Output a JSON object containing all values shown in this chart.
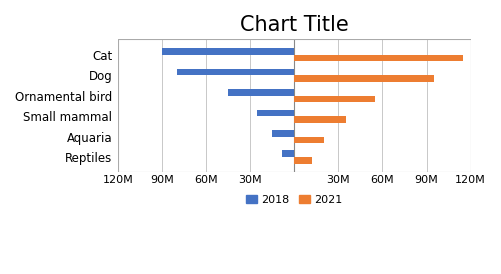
{
  "title": "Chart Title",
  "categories": [
    "Cat",
    "Dog",
    "Ornamental bird",
    "Small mammal",
    "Aquaria",
    "Reptiles"
  ],
  "values_2018": [
    -90000000,
    -80000000,
    -45000000,
    -25000000,
    -15000000,
    -8000000
  ],
  "values_2021": [
    115000000,
    95000000,
    55000000,
    35000000,
    20000000,
    12000000
  ],
  "color_2018": "#4472C4",
  "color_2021": "#ED7D31",
  "xlim": [
    -120000000,
    120000000
  ],
  "xticks": [
    -120000000,
    -90000000,
    -60000000,
    -30000000,
    0,
    30000000,
    60000000,
    90000000,
    120000000
  ],
  "xtick_labels": [
    "120M",
    "90M",
    "60M",
    "30M",
    "",
    "30M",
    "60M",
    "90M",
    "120M"
  ],
  "legend_2018": "2018",
  "legend_2021": "2021",
  "bar_height": 0.32,
  "title_fontsize": 15,
  "tick_fontsize": 8,
  "label_fontsize": 8.5,
  "background_color": "#FFFFFF",
  "grid_color": "#C8C8C8"
}
